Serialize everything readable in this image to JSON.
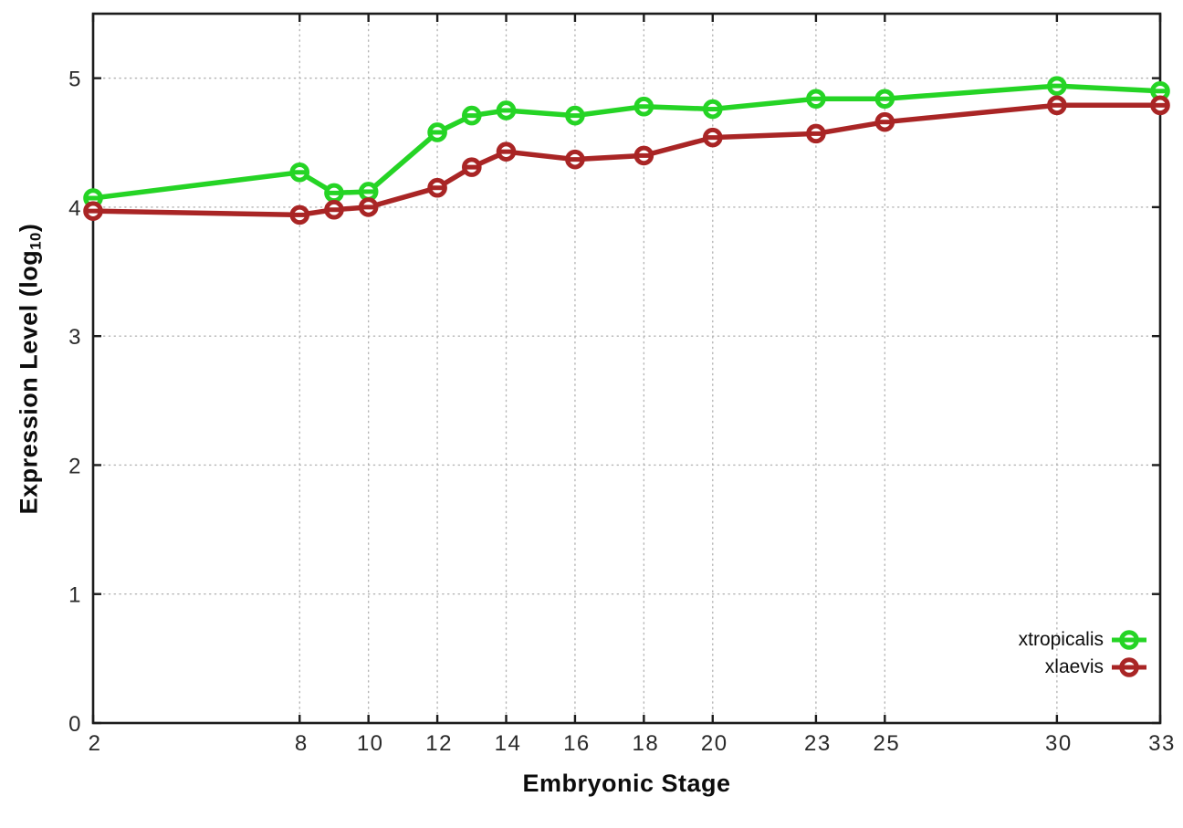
{
  "chart_data": {
    "type": "line",
    "title": "",
    "xlabel": "Embryonic Stage",
    "ylabel": {
      "prefix": "Expression Level (log",
      "sub": "10",
      "suffix": ")"
    },
    "x": [
      2,
      8,
      9,
      10,
      12,
      13,
      14,
      16,
      18,
      20,
      23,
      25,
      30,
      33
    ],
    "series": [
      {
        "name": "xtropicalis",
        "color": "#25d425",
        "values": [
          4.07,
          4.27,
          4.11,
          4.12,
          4.58,
          4.71,
          4.75,
          4.71,
          4.78,
          4.76,
          4.84,
          4.84,
          4.94,
          4.9
        ]
      },
      {
        "name": "xlaevis",
        "color": "#a92525",
        "values": [
          3.97,
          3.94,
          3.98,
          4.0,
          4.15,
          4.31,
          4.43,
          4.37,
          4.4,
          4.54,
          4.57,
          4.66,
          4.79,
          4.79
        ]
      }
    ],
    "x_tick_labels": [
      "2",
      "8",
      "10",
      "12",
      "14",
      "16",
      "18",
      "20",
      "23",
      "25",
      "30",
      "33"
    ],
    "x_tick_values": [
      2,
      8,
      10,
      12,
      14,
      16,
      18,
      20,
      23,
      25,
      30,
      33
    ],
    "y_tick_labels": [
      "0",
      "1",
      "2",
      "3",
      "4",
      "5"
    ],
    "y_tick_values": [
      0,
      1,
      2,
      3,
      4,
      5
    ],
    "xlim": [
      2,
      33
    ],
    "ylim": [
      0,
      5.5
    ],
    "grid": true,
    "grid_style": "dotted",
    "legend_position": "inside-bottom-right",
    "marker": "open-circle-with-dash",
    "colors": {
      "grid": "#b5b5b5",
      "axis": "#1c1c1c",
      "tick_text": "#2a2a2a",
      "background": "#ffffff"
    }
  }
}
